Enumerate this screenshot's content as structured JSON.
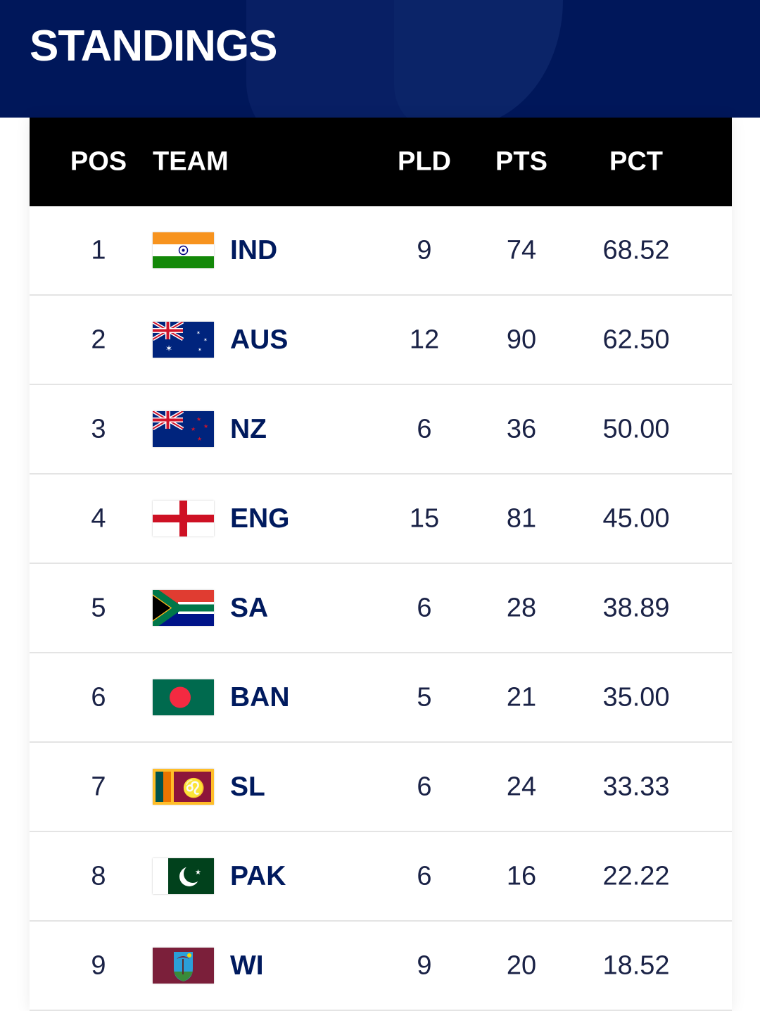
{
  "page": {
    "title": "STANDINGS"
  },
  "colors": {
    "header_bg": "#00175a",
    "table_header_bg": "#000000",
    "team_text": "#001a5e"
  },
  "columns": {
    "pos": "POS",
    "team": "TEAM",
    "pld": "PLD",
    "pts": "PTS",
    "pct": "PCT"
  },
  "rows": [
    {
      "pos": "1",
      "team": "IND",
      "flag": "india-flag",
      "pld": "9",
      "pts": "74",
      "pct": "68.52"
    },
    {
      "pos": "2",
      "team": "AUS",
      "flag": "australia-flag",
      "pld": "12",
      "pts": "90",
      "pct": "62.50"
    },
    {
      "pos": "3",
      "team": "NZ",
      "flag": "new-zealand-flag",
      "pld": "6",
      "pts": "36",
      "pct": "50.00"
    },
    {
      "pos": "4",
      "team": "ENG",
      "flag": "england-flag",
      "pld": "15",
      "pts": "81",
      "pct": "45.00"
    },
    {
      "pos": "5",
      "team": "SA",
      "flag": "south-africa-flag",
      "pld": "6",
      "pts": "28",
      "pct": "38.89"
    },
    {
      "pos": "6",
      "team": "BAN",
      "flag": "bangladesh-flag",
      "pld": "5",
      "pts": "21",
      "pct": "35.00"
    },
    {
      "pos": "7",
      "team": "SL",
      "flag": "sri-lanka-flag",
      "pld": "6",
      "pts": "24",
      "pct": "33.33"
    },
    {
      "pos": "8",
      "team": "PAK",
      "flag": "pakistan-flag",
      "pld": "6",
      "pts": "16",
      "pct": "22.22"
    },
    {
      "pos": "9",
      "team": "WI",
      "flag": "west-indies-flag",
      "pld": "9",
      "pts": "20",
      "pct": "18.52"
    }
  ]
}
